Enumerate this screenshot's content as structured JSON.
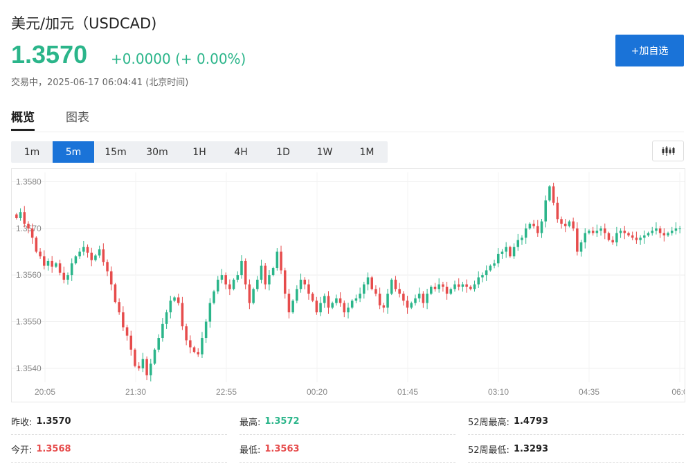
{
  "header": {
    "title": "美元/加元（USDCAD)",
    "price": "1.3570",
    "change": "+0.0000 (+ 0.00%)",
    "status": "交易中，2025-06-17 06:04:41 (北京时间)",
    "add_button": "+加自选"
  },
  "tabs": [
    {
      "label": "概览",
      "active": true
    },
    {
      "label": "图表",
      "active": false
    }
  ],
  "periods": [
    {
      "label": "1m",
      "active": false
    },
    {
      "label": "5m",
      "active": true
    },
    {
      "label": "15m",
      "active": false
    },
    {
      "label": "30m",
      "active": false
    },
    {
      "label": "1H",
      "active": false
    },
    {
      "label": "4H",
      "active": false
    },
    {
      "label": "1D",
      "active": false
    },
    {
      "label": "1W",
      "active": false
    },
    {
      "label": "1M",
      "active": false
    }
  ],
  "chart_data": {
    "type": "candlestick",
    "y_ticks": [
      "1.3580",
      "1.3570",
      "1.3560",
      "1.3550",
      "1.3540"
    ],
    "x_ticks": [
      "20:05",
      "21:30",
      "22:55",
      "00:20",
      "01:45",
      "03:10",
      "04:35",
      "06:0"
    ],
    "ylim": [
      1.3537,
      1.3582
    ],
    "grid": true,
    "up_color": "#2bb58a",
    "down_color": "#e64c4c",
    "closes": [
      1.35722,
      1.35735,
      1.3571,
      1.357,
      1.3568,
      1.3565,
      1.3564,
      1.3562,
      1.3563,
      1.35618,
      1.35625,
      1.35605,
      1.3559,
      1.356,
      1.35625,
      1.3564,
      1.3565,
      1.3566,
      1.35648,
      1.35632,
      1.35642,
      1.35655,
      1.35628,
      1.35608,
      1.3558,
      1.35542,
      1.3552,
      1.35488,
      1.3547,
      1.3544,
      1.35405,
      1.354,
      1.3542,
      1.35385,
      1.3541,
      1.3544,
      1.35465,
      1.35495,
      1.3552,
      1.35545,
      1.35552,
      1.3554,
      1.3549,
      1.3546,
      1.35445,
      1.35435,
      1.3543,
      1.35465,
      1.355,
      1.3554,
      1.35565,
      1.3559,
      1.356,
      1.3558,
      1.3557,
      1.3559,
      1.356,
      1.3563,
      1.3558,
      1.3554,
      1.3557,
      1.3559,
      1.3562,
      1.3558,
      1.356,
      1.35615,
      1.3565,
      1.3561,
      1.3556,
      1.3552,
      1.35545,
      1.3557,
      1.3559,
      1.3558,
      1.3556,
      1.35545,
      1.3552,
      1.3554,
      1.35555,
      1.3553,
      1.3554,
      1.3555,
      1.3554,
      1.3552,
      1.3553,
      1.35545,
      1.3555,
      1.3556,
      1.3558,
      1.35595,
      1.3557,
      1.3556,
      1.35535,
      1.3553,
      1.3556,
      1.3559,
      1.3557,
      1.3556,
      1.35545,
      1.3553,
      1.3554,
      1.3555,
      1.3556,
      1.3554,
      1.3556,
      1.35575,
      1.3557,
      1.3558,
      1.35575,
      1.3556,
      1.3557,
      1.3558,
      1.35575,
      1.3558,
      1.35575,
      1.3557,
      1.3558,
      1.35595,
      1.356,
      1.3561,
      1.3562,
      1.35625,
      1.35645,
      1.3565,
      1.3566,
      1.3564,
      1.3566,
      1.35675,
      1.3568,
      1.357,
      1.3571,
      1.35705,
      1.3569,
      1.35715,
      1.3576,
      1.3579,
      1.35755,
      1.3572,
      1.3571,
      1.35705,
      1.35715,
      1.357,
      1.3565,
      1.3567,
      1.3569,
      1.35695,
      1.3569,
      1.35695,
      1.357,
      1.3569,
      1.35675,
      1.3567,
      1.3569,
      1.35695,
      1.3569,
      1.35685,
      1.3568,
      1.35675,
      1.3568,
      1.35685,
      1.3569,
      1.35695,
      1.357,
      1.3569,
      1.35685,
      1.3569,
      1.35695,
      1.357,
      1.357
    ]
  },
  "stats": [
    {
      "label": "昨收:",
      "value": "1.3570",
      "color": "dark"
    },
    {
      "label": "最高:",
      "value": "1.3572",
      "color": "green"
    },
    {
      "label": "52周最高:",
      "value": "1.4793",
      "color": "dark"
    },
    {
      "label": "今开:",
      "value": "1.3568",
      "color": "red"
    },
    {
      "label": "最低:",
      "value": "1.3563",
      "color": "red"
    },
    {
      "label": "52周最低:",
      "value": "1.3293",
      "color": "dark"
    }
  ]
}
